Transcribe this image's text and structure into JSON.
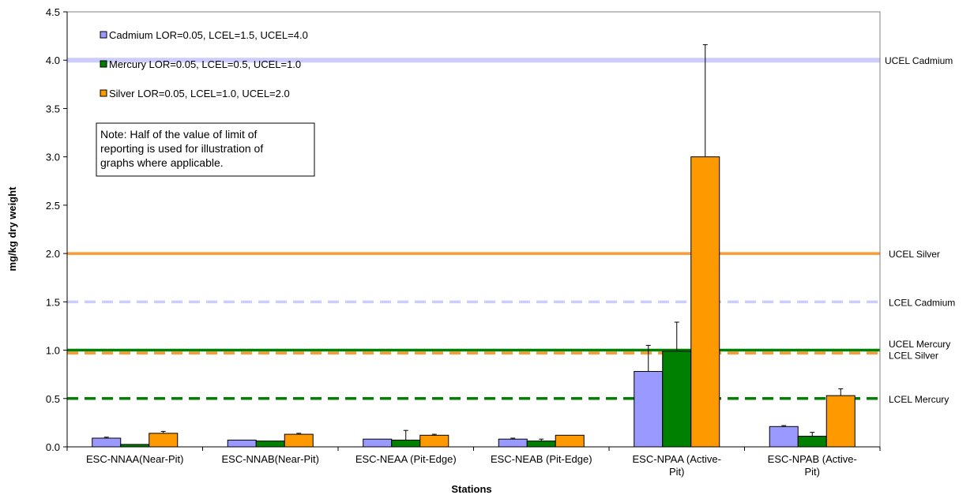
{
  "chart_data": {
    "type": "bar",
    "title": "",
    "xlabel": "Stations",
    "ylabel": "mg/kg dry weight",
    "ylim": [
      0,
      4.5
    ],
    "yticks": [
      "0.0",
      "0.5",
      "1.0",
      "1.5",
      "2.0",
      "2.5",
      "3.0",
      "3.5",
      "4.0",
      "4.5"
    ],
    "grid": false,
    "legend_position": "top-left",
    "categories": [
      [
        "ESC-NNAA(Near-Pit)"
      ],
      [
        "ESC-NNAB(Near-Pit)"
      ],
      [
        "ESC-NEAA (Pit-Edge)"
      ],
      [
        "ESC-NEAB (Pit-Edge)"
      ],
      [
        "ESC-NPAA (Active-",
        "Pit)"
      ],
      [
        "ESC-NPAB (Active-",
        "Pit)"
      ]
    ],
    "series": [
      {
        "name": "Cadmium LOR=0.05, LCEL=1.5, UCEL=4.0",
        "color": "#9999ff",
        "values": [
          0.09,
          0.07,
          0.08,
          0.08,
          0.78,
          0.21
        ],
        "error_plus": [
          0.01,
          0.0,
          0.0,
          0.01,
          0.27,
          0.01
        ]
      },
      {
        "name": "Mercury LOR=0.05, LCEL=0.5, UCEL=1.0",
        "color": "#008000",
        "values": [
          0.025,
          0.06,
          0.07,
          0.06,
          0.99,
          0.11
        ],
        "error_plus": [
          0.0,
          0.0,
          0.1,
          0.02,
          0.3,
          0.04
        ]
      },
      {
        "name": "Silver LOR=0.05, LCEL=1.0, UCEL=2.0",
        "color": "#ff9900",
        "values": [
          0.14,
          0.13,
          0.12,
          0.12,
          3.0,
          0.53
        ],
        "error_plus": [
          0.02,
          0.01,
          0.01,
          0.0,
          1.16,
          0.07
        ]
      }
    ],
    "reference_lines": [
      {
        "label": "UCEL Cadmium",
        "value": 4.0,
        "color": "#ccccff",
        "style": "solid"
      },
      {
        "label": "UCEL Silver",
        "value": 2.0,
        "color": "#ff9933",
        "style": "solid"
      },
      {
        "label": "LCEL Cadmium",
        "value": 1.5,
        "color": "#ccccff",
        "style": "dashed"
      },
      {
        "label": "UCEL Mercury",
        "value": 1.0,
        "color": "#008000",
        "style": "solid"
      },
      {
        "label": "LCEL Silver",
        "value": 0.97,
        "color": "#ff9933",
        "style": "dashed"
      },
      {
        "label": "LCEL Mercury",
        "value": 0.5,
        "color": "#008000",
        "style": "dashed"
      }
    ],
    "note": [
      "Note: Half of the value of limit of",
      "reporting is used for illustration of",
      "graphs where applicable."
    ]
  }
}
